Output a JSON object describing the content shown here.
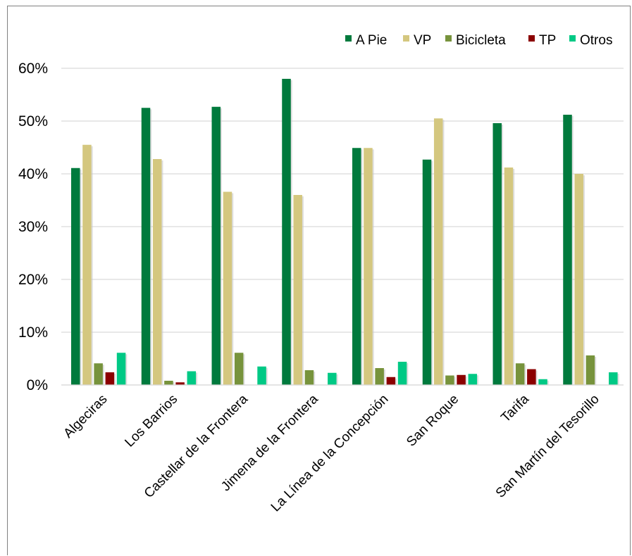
{
  "chart_data": {
    "type": "bar",
    "title": "",
    "xlabel": "",
    "ylabel": "",
    "ylim": [
      0,
      0.6
    ],
    "yticks": [
      "0%",
      "10%",
      "20%",
      "30%",
      "40%",
      "50%",
      "60%"
    ],
    "grid": true,
    "legend_position": "top-right",
    "categories": [
      "Algeciras",
      "Los Barrios",
      "Castellar de la Frontera",
      "Jimena de la Frontera",
      "La Línea de la Concepción",
      "San Roque",
      "Tarifa",
      "San Martín del Tesorillo"
    ],
    "series": [
      {
        "name": "A Pie",
        "color": "#007a3d",
        "values": [
          0.411,
          0.525,
          0.527,
          0.58,
          0.449,
          0.427,
          0.496,
          0.512
        ]
      },
      {
        "name": "VP",
        "color": "#d4c77f",
        "values": [
          0.455,
          0.428,
          0.366,
          0.36,
          0.449,
          0.505,
          0.412,
          0.4
        ]
      },
      {
        "name": "Bicicleta",
        "color": "#77933c",
        "values": [
          0.041,
          0.008,
          0.061,
          0.028,
          0.032,
          0.018,
          0.041,
          0.056
        ]
      },
      {
        "name": "TP",
        "color": "#8b0000",
        "values": [
          0.024,
          0.005,
          0.0,
          0.0,
          0.015,
          0.019,
          0.03,
          0.0
        ]
      },
      {
        "name": "Otros",
        "color": "#00c985",
        "values": [
          0.061,
          0.026,
          0.035,
          0.023,
          0.044,
          0.021,
          0.011,
          0.024
        ]
      }
    ]
  }
}
